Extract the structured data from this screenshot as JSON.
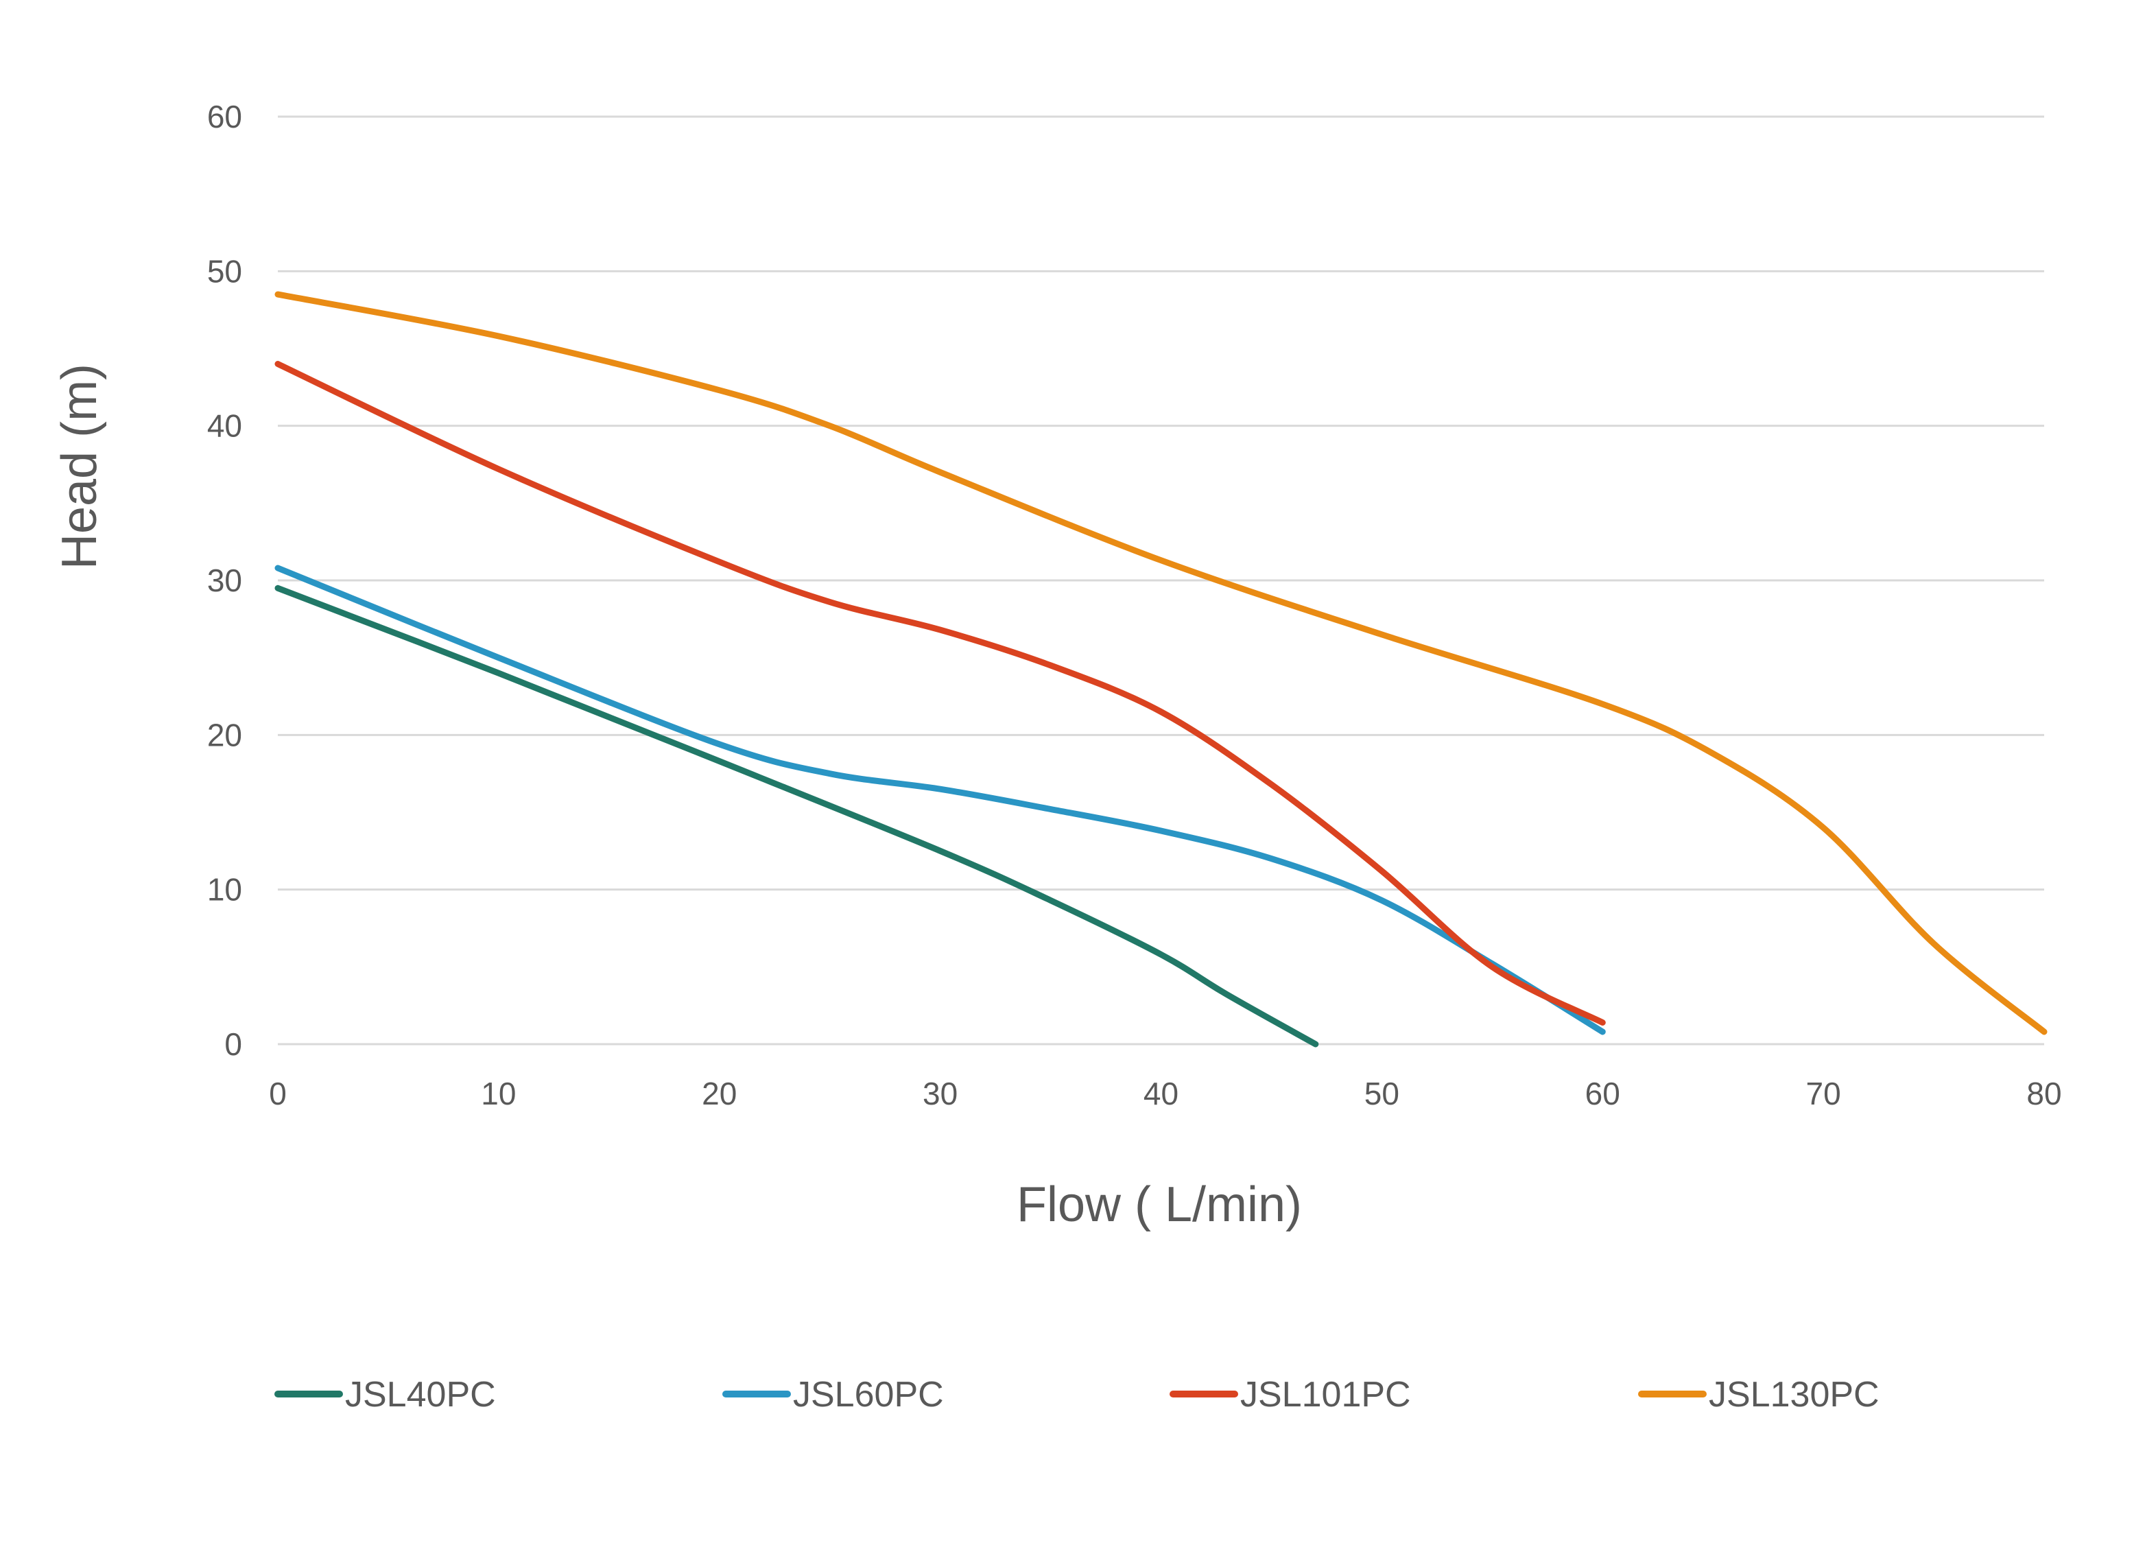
{
  "chart_data": {
    "type": "line",
    "title": "",
    "xlabel": "Flow ( L/min)",
    "ylabel": "Head (m)",
    "xlim": [
      0,
      80
    ],
    "ylim": [
      0,
      60
    ],
    "xticks": [
      0,
      10,
      20,
      30,
      40,
      50,
      60,
      70,
      80
    ],
    "yticks": [
      0,
      10,
      20,
      30,
      40,
      50,
      60
    ],
    "grid": "horizontal",
    "legend_position": "bottom",
    "series": [
      {
        "name": "JSL40PC",
        "color": "#217867",
        "points": [
          [
            0,
            29.5
          ],
          [
            10,
            24
          ],
          [
            20,
            18.3
          ],
          [
            30,
            12.5
          ],
          [
            35,
            9.3
          ],
          [
            40,
            5.8
          ],
          [
            43,
            3.2
          ],
          [
            47,
            0
          ]
        ]
      },
      {
        "name": "JSL60PC",
        "color": "#2a95c4",
        "points": [
          [
            0,
            30.8
          ],
          [
            10,
            25
          ],
          [
            20,
            19.4
          ],
          [
            25,
            17.5
          ],
          [
            30,
            16.5
          ],
          [
            35,
            15.2
          ],
          [
            40,
            13.8
          ],
          [
            45,
            12
          ],
          [
            50,
            9.3
          ],
          [
            55,
            5.2
          ],
          [
            60,
            0.8
          ]
        ]
      },
      {
        "name": "JSL101PC",
        "color": "#da4320",
        "points": [
          [
            0,
            44
          ],
          [
            10,
            37.2
          ],
          [
            20,
            31.2
          ],
          [
            25,
            28.6
          ],
          [
            30,
            26.8
          ],
          [
            35,
            24.5
          ],
          [
            40,
            21.5
          ],
          [
            45,
            16.8
          ],
          [
            50,
            11.2
          ],
          [
            55,
            5
          ],
          [
            60,
            1.4
          ]
        ]
      },
      {
        "name": "JSL130PC",
        "color": "#e98b14",
        "points": [
          [
            0,
            48.5
          ],
          [
            10,
            45.8
          ],
          [
            20,
            42.3
          ],
          [
            25,
            40
          ],
          [
            30,
            37
          ],
          [
            40,
            31.3
          ],
          [
            50,
            26.5
          ],
          [
            60,
            22
          ],
          [
            65,
            18.8
          ],
          [
            70,
            14
          ],
          [
            75,
            6.5
          ],
          [
            80,
            0.8
          ]
        ]
      }
    ]
  }
}
